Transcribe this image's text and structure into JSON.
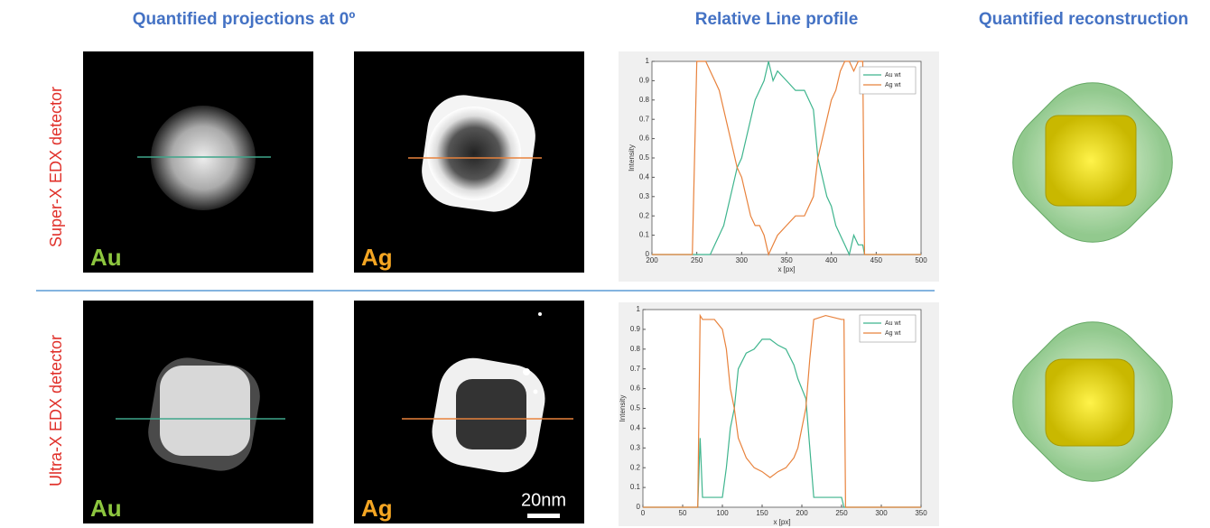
{
  "header": {
    "projections": "Quantified projections at 0º",
    "profile": "Relative Line profile",
    "reconstruction": "Quantified reconstruction"
  },
  "rows": [
    {
      "label": "Super-X EDX detector",
      "elements": [
        "Au",
        "Ag"
      ]
    },
    {
      "label": "Ultra-X EDX detector",
      "elements": [
        "Au",
        "Ag"
      ]
    }
  ],
  "scale_bar": "20nm",
  "chart_data": [
    {
      "type": "line",
      "x_label": "x [px]",
      "y_label": "Intensity",
      "x": [
        200,
        240,
        245,
        250,
        260,
        265,
        270,
        275,
        280,
        285,
        290,
        295,
        300,
        305,
        310,
        315,
        320,
        325,
        330,
        335,
        340,
        350,
        360,
        370,
        380,
        385,
        390,
        395,
        400,
        405,
        410,
        415,
        420,
        425,
        430,
        435,
        437,
        440,
        500
      ],
      "series": [
        {
          "name": "Au wt",
          "color": "#3fb58e",
          "values": [
            0,
            0,
            0,
            0,
            0,
            0,
            0.05,
            0.1,
            0.15,
            0.25,
            0.35,
            0.45,
            0.5,
            0.6,
            0.7,
            0.8,
            0.85,
            0.9,
            1,
            0.9,
            0.95,
            0.9,
            0.85,
            0.85,
            0.75,
            0.5,
            0.4,
            0.3,
            0.25,
            0.15,
            0.1,
            0.05,
            0,
            0.1,
            0.05,
            0.05,
            0,
            0,
            0
          ]
        },
        {
          "name": "Ag wt",
          "color": "#e8823c",
          "values": [
            0,
            0,
            0,
            1,
            1,
            0.95,
            0.9,
            0.85,
            0.75,
            0.65,
            0.55,
            0.45,
            0.4,
            0.3,
            0.2,
            0.15,
            0.15,
            0.1,
            0,
            0.05,
            0.1,
            0.15,
            0.2,
            0.2,
            0.3,
            0.5,
            0.6,
            0.7,
            0.8,
            0.85,
            0.95,
            1,
            1,
            0.95,
            1,
            1,
            0,
            0,
            0
          ]
        }
      ],
      "xlim": [
        200,
        500
      ],
      "xticks": [
        200,
        250,
        300,
        350,
        400,
        450,
        500
      ],
      "ylim": [
        0,
        1
      ],
      "yticks": [
        0,
        0.1,
        0.2,
        0.3,
        0.4,
        0.5,
        0.6,
        0.7,
        0.8,
        0.9,
        1
      ],
      "legend": "top-right"
    },
    {
      "type": "line",
      "x_label": "x [px]",
      "y_label": "Intensity",
      "x": [
        0,
        69,
        72,
        75,
        90,
        100,
        105,
        110,
        115,
        120,
        130,
        140,
        150,
        160,
        170,
        180,
        190,
        195,
        200,
        205,
        210,
        215,
        230,
        250,
        253,
        255,
        350
      ],
      "series": [
        {
          "name": "Au wt",
          "color": "#3fb58e",
          "values": [
            0,
            0,
            0.35,
            0.05,
            0.05,
            0.05,
            0.2,
            0.4,
            0.5,
            0.7,
            0.78,
            0.8,
            0.85,
            0.85,
            0.82,
            0.8,
            0.72,
            0.65,
            0.6,
            0.55,
            0.3,
            0.05,
            0.05,
            0.05,
            0,
            0,
            0
          ]
        },
        {
          "name": "Ag wt",
          "color": "#e8823c",
          "values": [
            0,
            0,
            0.97,
            0.95,
            0.95,
            0.9,
            0.8,
            0.6,
            0.5,
            0.35,
            0.25,
            0.2,
            0.18,
            0.15,
            0.18,
            0.2,
            0.25,
            0.3,
            0.4,
            0.5,
            0.75,
            0.95,
            0.97,
            0.95,
            0.95,
            0,
            0
          ]
        }
      ],
      "xlim": [
        0,
        350
      ],
      "xticks": [
        0,
        50,
        100,
        150,
        200,
        250,
        300,
        350
      ],
      "ylim": [
        0,
        1
      ],
      "yticks": [
        0,
        0.1,
        0.2,
        0.3,
        0.4,
        0.5,
        0.6,
        0.7,
        0.8,
        0.9,
        1
      ],
      "legend": "top-right"
    }
  ]
}
